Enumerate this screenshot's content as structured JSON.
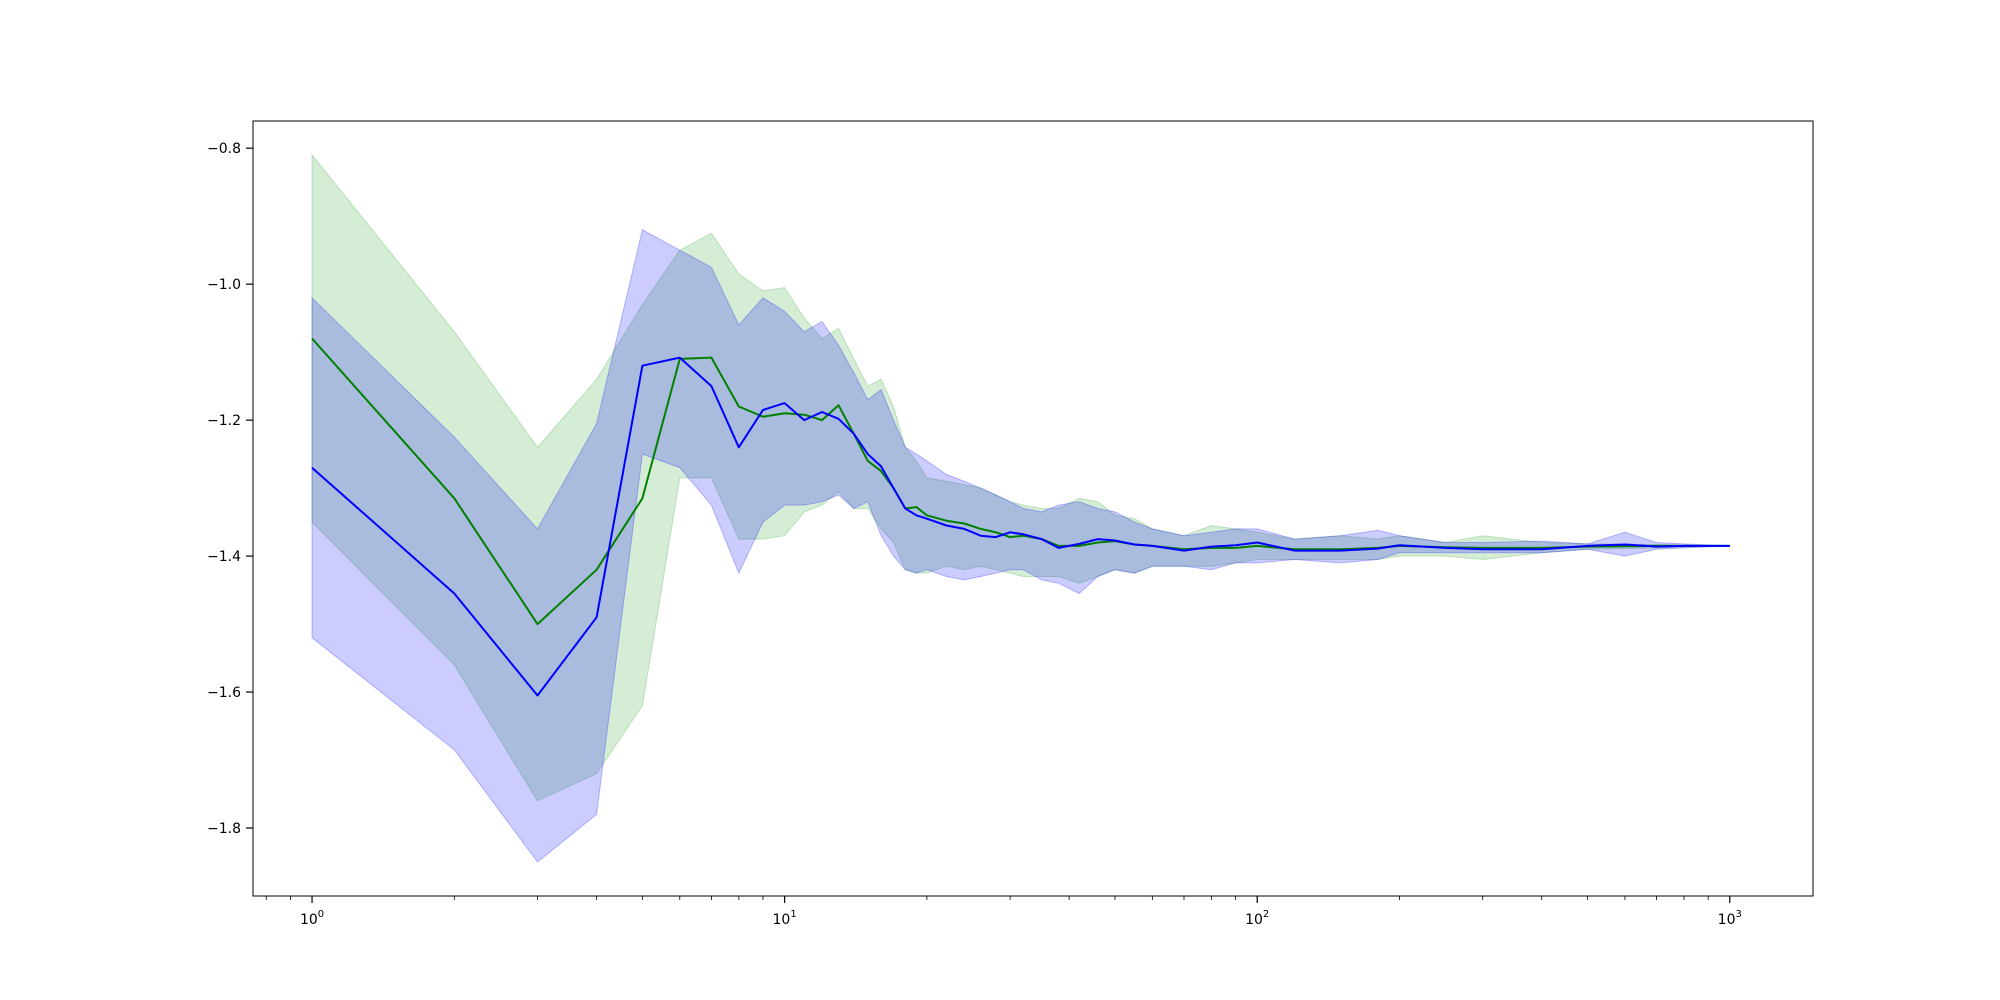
{
  "chart_data": {
    "type": "line",
    "title": "",
    "xlabel": "",
    "ylabel": "",
    "xscale": "log",
    "xlim": [
      0.75,
      1500
    ],
    "ylim": [
      -1.9,
      -0.76
    ],
    "grid": false,
    "legend": "none",
    "xticks": [
      {
        "value": 1,
        "base": "10",
        "exp": "0"
      },
      {
        "value": 10,
        "base": "10",
        "exp": "1"
      },
      {
        "value": 100,
        "base": "10",
        "exp": "2"
      },
      {
        "value": 1000,
        "base": "10",
        "exp": "3"
      }
    ],
    "yticks": [
      {
        "value": -0.8,
        "label": "−0.8"
      },
      {
        "value": -1.0,
        "label": "−1.0"
      },
      {
        "value": -1.2,
        "label": "−1.2"
      },
      {
        "value": -1.4,
        "label": "−1.4"
      },
      {
        "value": -1.6,
        "label": "−1.6"
      },
      {
        "value": -1.8,
        "label": "−1.8"
      }
    ],
    "series": [
      {
        "color": "#008000",
        "band_color": "#2ca02c",
        "x": [
          1,
          2,
          3,
          4,
          5,
          6,
          7,
          8,
          9,
          10,
          11,
          12,
          13,
          14,
          15,
          16,
          17,
          18,
          19,
          20,
          22,
          24,
          26,
          28,
          30,
          32,
          35,
          38,
          42,
          46,
          50,
          55,
          60,
          70,
          80,
          90,
          100,
          120,
          150,
          180,
          200,
          250,
          300,
          400,
          500,
          700,
          1000
        ],
        "y": [
          -1.08,
          -1.315,
          -1.5,
          -1.42,
          -1.315,
          -1.11,
          -1.108,
          -1.18,
          -1.195,
          -1.19,
          -1.192,
          -1.2,
          -1.178,
          -1.22,
          -1.26,
          -1.275,
          -1.3,
          -1.33,
          -1.328,
          -1.34,
          -1.348,
          -1.352,
          -1.36,
          -1.365,
          -1.372,
          -1.37,
          -1.375,
          -1.385,
          -1.385,
          -1.38,
          -1.378,
          -1.383,
          -1.385,
          -1.39,
          -1.388,
          -1.388,
          -1.385,
          -1.39,
          -1.39,
          -1.388,
          -1.385,
          -1.387,
          -1.388,
          -1.388,
          -1.386,
          -1.385,
          -1.385
        ],
        "upper": [
          -0.81,
          -1.07,
          -1.24,
          -1.14,
          -1.03,
          -0.95,
          -0.925,
          -0.985,
          -1.01,
          -1.005,
          -1.05,
          -1.08,
          -1.065,
          -1.11,
          -1.15,
          -1.14,
          -1.18,
          -1.24,
          -1.26,
          -1.285,
          -1.29,
          -1.295,
          -1.3,
          -1.31,
          -1.32,
          -1.325,
          -1.33,
          -1.33,
          -1.315,
          -1.32,
          -1.34,
          -1.345,
          -1.36,
          -1.37,
          -1.355,
          -1.36,
          -1.365,
          -1.375,
          -1.37,
          -1.375,
          -1.37,
          -1.38,
          -1.37,
          -1.38,
          -1.382,
          -1.383,
          -1.385
        ],
        "lower": [
          -1.35,
          -1.56,
          -1.76,
          -1.72,
          -1.62,
          -1.285,
          -1.285,
          -1.375,
          -1.375,
          -1.37,
          -1.335,
          -1.325,
          -1.305,
          -1.33,
          -1.33,
          -1.36,
          -1.38,
          -1.42,
          -1.425,
          -1.425,
          -1.415,
          -1.42,
          -1.415,
          -1.42,
          -1.425,
          -1.43,
          -1.43,
          -1.43,
          -1.44,
          -1.43,
          -1.42,
          -1.425,
          -1.415,
          -1.415,
          -1.415,
          -1.41,
          -1.405,
          -1.405,
          -1.405,
          -1.405,
          -1.4,
          -1.4,
          -1.405,
          -1.395,
          -1.39,
          -1.388,
          -1.385
        ]
      },
      {
        "color": "#0000ff",
        "band_color": "#0000ff",
        "x": [
          1,
          2,
          3,
          4,
          5,
          6,
          7,
          8,
          9,
          10,
          11,
          12,
          13,
          14,
          15,
          16,
          17,
          18,
          19,
          20,
          22,
          24,
          26,
          28,
          30,
          32,
          35,
          38,
          42,
          46,
          50,
          55,
          60,
          70,
          80,
          90,
          100,
          120,
          150,
          180,
          200,
          250,
          300,
          400,
          500,
          600,
          700,
          800,
          1000
        ],
        "y": [
          -1.27,
          -1.455,
          -1.605,
          -1.49,
          -1.12,
          -1.108,
          -1.15,
          -1.24,
          -1.185,
          -1.175,
          -1.2,
          -1.188,
          -1.198,
          -1.22,
          -1.25,
          -1.268,
          -1.3,
          -1.33,
          -1.34,
          -1.345,
          -1.355,
          -1.36,
          -1.37,
          -1.372,
          -1.365,
          -1.368,
          -1.375,
          -1.388,
          -1.382,
          -1.375,
          -1.377,
          -1.383,
          -1.385,
          -1.392,
          -1.386,
          -1.384,
          -1.38,
          -1.392,
          -1.392,
          -1.389,
          -1.384,
          -1.388,
          -1.39,
          -1.39,
          -1.385,
          -1.383,
          -1.386,
          -1.385,
          -1.385
        ],
        "upper": [
          -1.02,
          -1.225,
          -1.36,
          -1.205,
          -0.92,
          -0.95,
          -0.975,
          -1.06,
          -1.02,
          -1.04,
          -1.07,
          -1.055,
          -1.09,
          -1.13,
          -1.17,
          -1.155,
          -1.2,
          -1.24,
          -1.25,
          -1.26,
          -1.28,
          -1.29,
          -1.3,
          -1.31,
          -1.32,
          -1.33,
          -1.335,
          -1.325,
          -1.32,
          -1.33,
          -1.335,
          -1.35,
          -1.36,
          -1.37,
          -1.365,
          -1.36,
          -1.36,
          -1.375,
          -1.37,
          -1.362,
          -1.37,
          -1.38,
          -1.38,
          -1.378,
          -1.382,
          -1.365,
          -1.38,
          -1.382,
          -1.385
        ],
        "lower": [
          -1.52,
          -1.685,
          -1.85,
          -1.78,
          -1.25,
          -1.27,
          -1.325,
          -1.425,
          -1.35,
          -1.325,
          -1.325,
          -1.32,
          -1.31,
          -1.33,
          -1.32,
          -1.37,
          -1.4,
          -1.42,
          -1.425,
          -1.42,
          -1.43,
          -1.435,
          -1.43,
          -1.425,
          -1.42,
          -1.42,
          -1.435,
          -1.44,
          -1.455,
          -1.43,
          -1.42,
          -1.425,
          -1.415,
          -1.415,
          -1.42,
          -1.41,
          -1.41,
          -1.405,
          -1.41,
          -1.405,
          -1.395,
          -1.395,
          -1.395,
          -1.395,
          -1.39,
          -1.4,
          -1.39,
          -1.388,
          -1.385
        ]
      }
    ]
  }
}
